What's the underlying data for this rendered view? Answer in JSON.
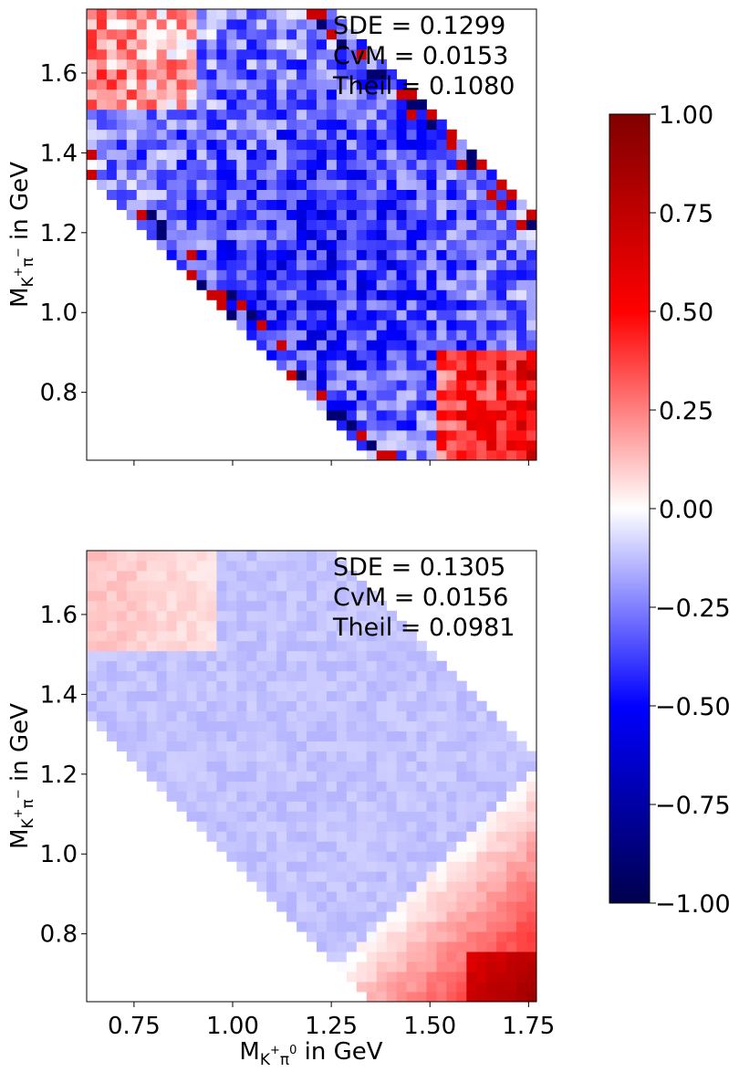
{
  "chart_data": [
    {
      "type": "heatmap",
      "panel": "top",
      "xlabel_main": "",
      "ylabel_main": "M",
      "ylabel_sub": "K",
      "ylabel_sup": "+",
      "ylabel_sub2": "π",
      "ylabel_sup2": "−",
      "ylabel_tail": " in GeV",
      "xlim": [
        0.63,
        1.77
      ],
      "ylim": [
        0.63,
        1.76
      ],
      "xticks": [
        0.75,
        1.0,
        1.25,
        1.5,
        1.75
      ],
      "xtick_labels": [
        "",
        "",
        "",
        "",
        ""
      ],
      "yticks": [
        0.8,
        1.0,
        1.2,
        1.4,
        1.6
      ],
      "ytick_labels": [
        "0.8",
        "1.0",
        "1.2",
        "1.4",
        "1.6"
      ],
      "annotations": [
        "SDE = 0.1299",
        "CvM = 0.0153",
        "Theil = 0.1080"
      ],
      "value_range": [
        -1.0,
        1.0
      ],
      "pattern": "noisy",
      "description_of_values": "mostly negative (blue) in the interior, stronger blue toward center; positive (red) near the lower-right corner (x≈1.55–1.77, y≈0.65–0.85) and upper-left (x≈0.65–0.9, y≈1.55–1.75)"
    },
    {
      "type": "heatmap",
      "panel": "bottom",
      "ylabel_main": "M",
      "ylabel_sub": "K",
      "ylabel_sup": "+",
      "ylabel_sub2": "π",
      "ylabel_sup2": "−",
      "ylabel_tail": " in GeV",
      "xlabel_main": "M",
      "xlabel_sub": "K",
      "xlabel_sup": "+",
      "xlabel_sub2": "π",
      "xlabel_sup2": "0",
      "xlabel_tail": " in GeV",
      "xlim": [
        0.63,
        1.77
      ],
      "ylim": [
        0.63,
        1.76
      ],
      "xticks": [
        0.75,
        1.0,
        1.25,
        1.5,
        1.75
      ],
      "xtick_labels": [
        "0.75",
        "1.00",
        "1.25",
        "1.50",
        "1.75"
      ],
      "yticks": [
        0.8,
        1.0,
        1.2,
        1.4,
        1.6
      ],
      "ytick_labels": [
        "0.8",
        "1.0",
        "1.2",
        "1.4",
        "1.6"
      ],
      "annotations": [
        "SDE = 0.1305",
        "CvM = 0.0156",
        "Theil = 0.0981"
      ],
      "value_range": [
        -1.0,
        1.0
      ],
      "pattern": "smooth",
      "description_of_values": "weakly negative (light blue) interior; positive (red) band at lower-right, strongest near x≈1.7, y≈0.65; light red near upper-left"
    }
  ],
  "colorbar": {
    "colormap": "seismic",
    "range": [
      -1.0,
      1.0
    ],
    "ticks": [
      1.0,
      0.75,
      0.5,
      0.25,
      0.0,
      -0.25,
      -0.5,
      -0.75,
      -1.0
    ],
    "tick_labels": [
      "1.00",
      "0.75",
      "0.50",
      "0.25",
      "0.00",
      "−0.25",
      "−0.50",
      "−0.75",
      "−1.00"
    ]
  }
}
